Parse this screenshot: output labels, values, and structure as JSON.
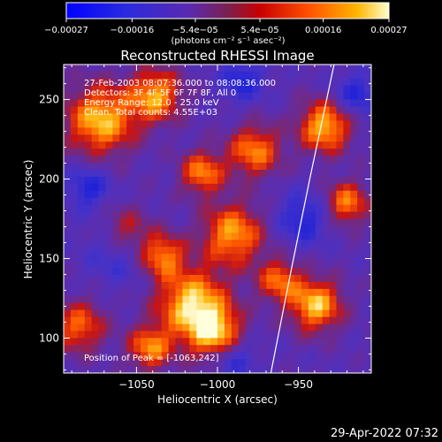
{
  "chart_data": {
    "type": "heatmap",
    "title": "Reconstructed RHESSI Image",
    "xlabel": "Heliocentric X (arcsec)",
    "ylabel": "Heliocentric Y (arcsec)",
    "xlim": [
      -1095,
      -905
    ],
    "ylim": [
      78,
      272
    ],
    "x_ticks": [
      -1050,
      -1000,
      -950
    ],
    "x_tick_labels": [
      "−1050",
      "−1000",
      "−950"
    ],
    "y_ticks": [
      100,
      150,
      200,
      250
    ],
    "y_tick_labels": [
      "100",
      "150",
      "200",
      "250"
    ],
    "colorbar": {
      "range": [
        -0.00027,
        0.00027
      ],
      "ticks": [
        -0.00027,
        -0.00016,
        -5.4e-05,
        5.4e-05,
        0.00016,
        0.00027
      ],
      "tick_labels": [
        "−0.00027",
        "−0.00016",
        "−5.4e−05",
        "5.4e−05",
        "0.00016",
        "0.00027"
      ],
      "unit_label": "(photons cm⁻² s⁻¹ asec⁻²)",
      "colormap": "blue-purple-red-yellow-white"
    },
    "annotations": [
      "27-Feb-2003 08:07:36.000 to 08:08:36.000",
      "Detectors: 3F 4F 5F 6F 7F 8F, All 0",
      "Energy Range: 12.0 - 25.0 keV",
      "Clean.  Total counts: 4.55E+03"
    ],
    "peak_label": "Position of Peak = [-1063,242]",
    "limb": [
      [
        -967,
        78
      ],
      [
        -955,
        140
      ],
      [
        -943,
        200
      ],
      [
        -928,
        272
      ]
    ],
    "grid": false
  },
  "footer": {
    "timestamp": "29-Apr-2022 07:32"
  },
  "colors": {
    "background": "#000000",
    "text": "#ffffff",
    "limb": "#ffffff",
    "frame": "#ffffff"
  }
}
